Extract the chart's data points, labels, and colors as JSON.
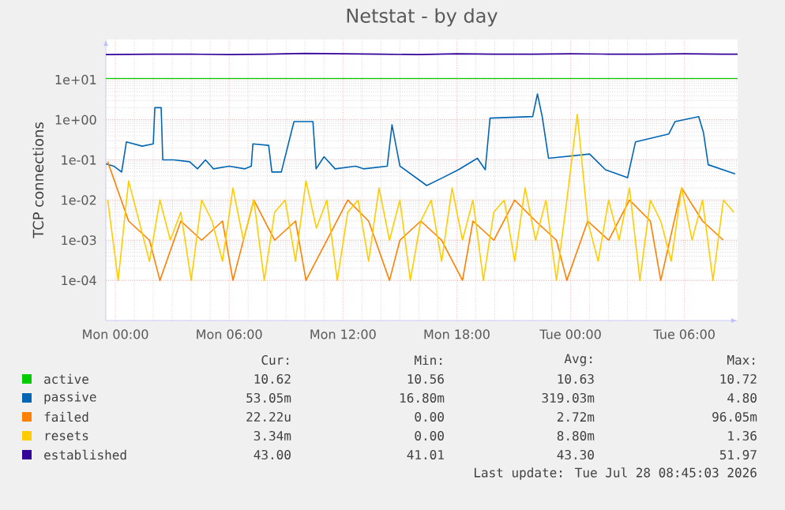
{
  "chart_data": {
    "type": "line",
    "title": "Netstat - by day",
    "ylabel": "TCP connections",
    "log": "y",
    "grid": true,
    "legend": "bottom",
    "xlim": [
      "2026-07-26T23:30",
      "2026-07-28T08:48"
    ],
    "xticks": [
      {
        "value": "2026-07-27T00:00",
        "label": "Mon 00:00"
      },
      {
        "value": "2026-07-27T06:00",
        "label": "Mon 06:00"
      },
      {
        "value": "2026-07-27T12:00",
        "label": "Mon 12:00"
      },
      {
        "value": "2026-07-27T18:00",
        "label": "Mon 18:00"
      },
      {
        "value": "2026-07-28T00:00",
        "label": "Tue 00:00"
      },
      {
        "value": "2026-07-28T06:00",
        "label": "Tue 06:00"
      }
    ],
    "ylim": [
      1e-05,
      100
    ],
    "yticks": [
      {
        "value": 0.0001,
        "label": "1e-04"
      },
      {
        "value": 0.001,
        "label": "1e-03"
      },
      {
        "value": 0.01,
        "label": "1e-02"
      },
      {
        "value": 0.1,
        "label": "1e-01"
      },
      {
        "value": 1,
        "label": "1e+00"
      },
      {
        "value": 10,
        "label": "1e+01"
      }
    ],
    "x": [
      "2026-07-26T23:36",
      "2026-07-27T00:09",
      "2026-07-27T00:42",
      "2026-07-27T01:15",
      "2026-07-27T01:48",
      "2026-07-27T02:21",
      "2026-07-27T02:54",
      "2026-07-27T03:27",
      "2026-07-27T04:00",
      "2026-07-27T04:33",
      "2026-07-27T05:06",
      "2026-07-27T05:39",
      "2026-07-27T06:12",
      "2026-07-27T06:45",
      "2026-07-27T07:18",
      "2026-07-27T07:51",
      "2026-07-27T08:24",
      "2026-07-27T08:57",
      "2026-07-27T09:30",
      "2026-07-27T10:03",
      "2026-07-27T10:36",
      "2026-07-27T11:09",
      "2026-07-27T11:42",
      "2026-07-27T12:15",
      "2026-07-27T12:48",
      "2026-07-27T13:21",
      "2026-07-27T13:54",
      "2026-07-27T14:27",
      "2026-07-27T15:00",
      "2026-07-27T15:33",
      "2026-07-27T16:06",
      "2026-07-27T16:39",
      "2026-07-27T17:12",
      "2026-07-27T17:45",
      "2026-07-27T18:18",
      "2026-07-27T18:51",
      "2026-07-27T19:24",
      "2026-07-27T19:57",
      "2026-07-27T20:30",
      "2026-07-27T21:03",
      "2026-07-27T21:36",
      "2026-07-27T22:09",
      "2026-07-27T22:42",
      "2026-07-27T23:15",
      "2026-07-27T23:48",
      "2026-07-28T00:21",
      "2026-07-28T00:54",
      "2026-07-28T01:27",
      "2026-07-28T02:00",
      "2026-07-28T02:33",
      "2026-07-28T03:06",
      "2026-07-28T03:39",
      "2026-07-28T04:12",
      "2026-07-28T04:45",
      "2026-07-28T05:18",
      "2026-07-28T05:51",
      "2026-07-28T06:24",
      "2026-07-28T06:57",
      "2026-07-28T07:30",
      "2026-07-28T08:03",
      "2026-07-28T08:36"
    ],
    "series": [
      {
        "name": "active",
        "color": "#00cc00",
        "x": [
          "2026-07-26T23:30",
          "2026-07-28T08:48"
        ],
        "values": [
          10.6,
          10.6
        ]
      },
      {
        "name": "passive",
        "color": "#0066b3",
        "x": [
          "2026-07-26T23:30",
          "2026-07-26T23:55",
          "2026-07-27T00:20",
          "2026-07-27T00:35",
          "2026-07-27T01:25",
          "2026-07-27T02:00",
          "2026-07-27T02:05",
          "2026-07-27T02:25",
          "2026-07-27T02:30",
          "2026-07-27T03:05",
          "2026-07-27T03:55",
          "2026-07-27T04:20",
          "2026-07-27T04:45",
          "2026-07-27T05:10",
          "2026-07-27T06:00",
          "2026-07-27T06:50",
          "2026-07-27T07:10",
          "2026-07-27T07:15",
          "2026-07-27T08:05",
          "2026-07-27T08:15",
          "2026-07-27T08:45",
          "2026-07-27T09:25",
          "2026-07-27T10:25",
          "2026-07-27T10:35",
          "2026-07-27T11:00",
          "2026-07-27T11:35",
          "2026-07-27T12:40",
          "2026-07-27T13:05",
          "2026-07-27T14:20",
          "2026-07-27T14:35",
          "2026-07-27T15:00",
          "2026-07-27T16:25",
          "2026-07-27T17:15",
          "2026-07-27T18:05",
          "2026-07-27T19:05",
          "2026-07-27T19:30",
          "2026-07-27T19:45",
          "2026-07-27T22:00",
          "2026-07-27T22:15",
          "2026-07-27T22:30",
          "2026-07-27T22:50",
          "2026-07-28T01:00",
          "2026-07-28T01:50",
          "2026-07-28T03:00",
          "2026-07-28T03:25",
          "2026-07-28T05:10",
          "2026-07-28T05:30",
          "2026-07-28T06:45",
          "2026-07-28T07:00",
          "2026-07-28T07:15",
          "2026-07-28T08:40"
        ],
        "values": [
          0.08,
          0.07,
          0.05,
          0.28,
          0.22,
          0.25,
          2.0,
          2.0,
          0.1,
          0.1,
          0.09,
          0.06,
          0.1,
          0.06,
          0.07,
          0.06,
          0.07,
          0.25,
          0.23,
          0.05,
          0.05,
          0.9,
          0.9,
          0.06,
          0.12,
          0.06,
          0.07,
          0.06,
          0.07,
          0.75,
          0.07,
          0.023,
          0.036,
          0.057,
          0.11,
          0.057,
          1.1,
          1.2,
          4.4,
          1.2,
          0.11,
          0.14,
          0.057,
          0.036,
          0.28,
          0.44,
          0.9,
          1.2,
          0.48,
          0.076,
          0.045
        ]
      },
      {
        "name": "failed",
        "color": "#ff8000",
        "values": [
          0.09,
          null,
          0.003,
          null,
          0.001,
          0.0001,
          null,
          0.003,
          null,
          0.001,
          null,
          0.003,
          0.0001,
          null,
          0.01,
          null,
          0.001,
          null,
          0.003,
          0.0001,
          null,
          0.001,
          null,
          0.01,
          null,
          0.003,
          null,
          0.0001,
          0.001,
          null,
          0.003,
          null,
          0.001,
          null,
          0.0001,
          0.003,
          null,
          0.001,
          null,
          0.01,
          null,
          0.003,
          null,
          0.001,
          0.0001,
          null,
          0.003,
          null,
          0.001,
          null,
          0.01,
          null,
          0.003,
          0.0001,
          null,
          0.02,
          null,
          0.003,
          null,
          0.001,
          null
        ]
      },
      {
        "name": "resets",
        "color": "#ffcc00",
        "values": [
          0.01,
          0.0001,
          0.03,
          0.003,
          0.0003,
          0.01,
          0.001,
          0.005,
          0.0001,
          0.01,
          0.003,
          0.0003,
          0.02,
          0.001,
          0.01,
          0.0001,
          0.005,
          0.01,
          0.0003,
          0.03,
          0.002,
          0.01,
          0.0001,
          0.005,
          0.01,
          0.0003,
          0.02,
          0.001,
          0.01,
          0.0001,
          0.003,
          0.01,
          0.0003,
          0.02,
          0.001,
          0.01,
          0.0001,
          0.005,
          0.01,
          0.0003,
          0.02,
          0.001,
          0.01,
          0.0001,
          0.01,
          1.36,
          0.003,
          0.0003,
          0.01,
          0.001,
          0.02,
          0.0001,
          0.01,
          0.003,
          0.0003,
          0.02,
          0.001,
          0.01,
          0.0001,
          0.01,
          0.005
        ]
      },
      {
        "name": "established",
        "color": "#330099",
        "x": [
          "2026-07-26T23:30",
          "2026-07-27T02:00",
          "2026-07-27T04:00",
          "2026-07-27T06:00",
          "2026-07-27T08:00",
          "2026-07-27T10:00",
          "2026-07-27T12:00",
          "2026-07-27T14:00",
          "2026-07-27T16:00",
          "2026-07-27T18:00",
          "2026-07-27T20:00",
          "2026-07-27T22:00",
          "2026-07-28T00:00",
          "2026-07-28T02:00",
          "2026-07-28T04:00",
          "2026-07-28T06:00",
          "2026-07-28T08:00",
          "2026-07-28T08:48"
        ],
        "values": [
          42,
          43,
          43,
          42,
          43,
          45,
          44,
          43,
          42,
          44,
          43,
          43,
          44,
          43,
          43,
          44,
          43,
          43
        ]
      }
    ],
    "annotations": [
      "Cur:",
      "Min:",
      "Avg:",
      "Max:",
      "10.62",
      "10.56",
      "10.63",
      "10.72",
      "53.05m",
      "16.80m",
      "319.03m",
      "4.80",
      "22.22u",
      "0.00",
      "2.72m",
      "96.05m",
      "3.34m",
      "0.00",
      "8.80m",
      "1.36",
      "43.00",
      "41.01",
      "43.30",
      "51.97",
      "Last update: Tue Jul 28 08:45:03 2026"
    ]
  }
}
